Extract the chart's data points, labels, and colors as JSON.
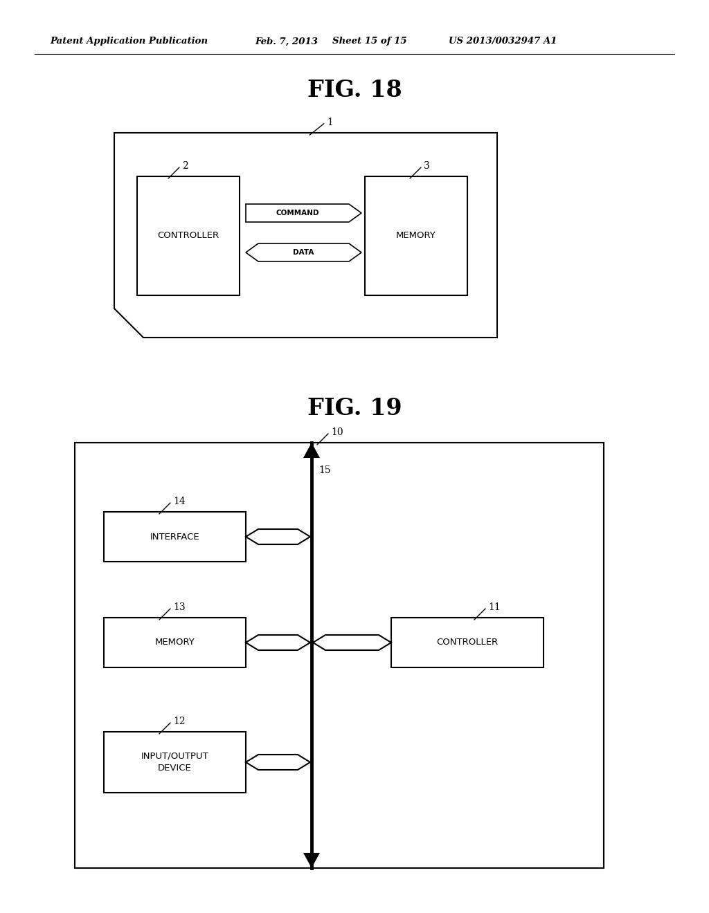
{
  "bg_color": "#ffffff",
  "header_text": "Patent Application Publication",
  "header_date": "Feb. 7, 2013",
  "header_sheet": "Sheet 15 of 15",
  "header_patent": "US 2013/0032947 A1",
  "fig18_title": "FIG. 18",
  "fig19_title": "FIG. 19",
  "fig18_label1": "1",
  "fig18_label2": "2",
  "fig18_label3": "3",
  "fig18_controller": "CONTROLLER",
  "fig18_memory": "MEMORY",
  "fig18_command": "COMMAND",
  "fig18_data": "DATA",
  "fig19_label10": "10",
  "fig19_label11": "11",
  "fig19_label12": "12",
  "fig19_label13": "13",
  "fig19_label14": "14",
  "fig19_label15": "15",
  "fig19_controller": "CONTROLLER",
  "fig19_memory": "MEMORY",
  "fig19_interface": "INTERFACE",
  "fig19_io": "INPUT/OUTPUT\nDEVICE"
}
